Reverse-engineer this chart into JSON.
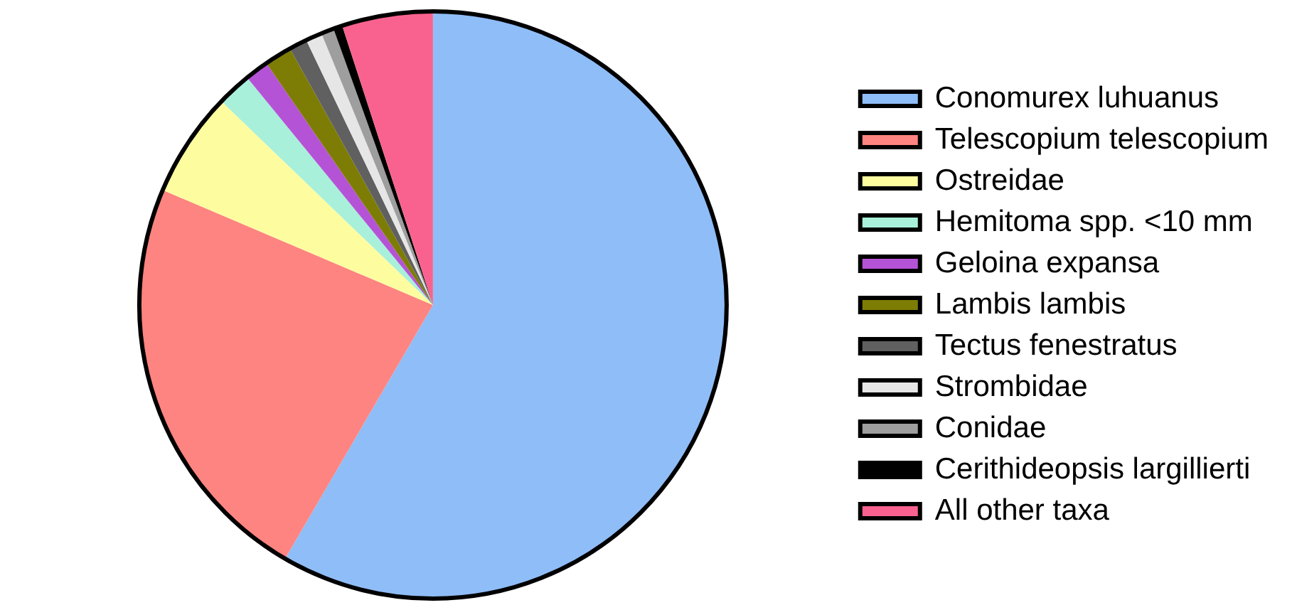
{
  "chart_data": {
    "type": "pie",
    "categories": [
      "Conomurex luhuanus",
      "Telescopium telescopium",
      "Ostreidae",
      "Hemitoma spp. <10 mm",
      "Geloina expansa",
      "Lambis lambis",
      "Tectus fenestratus",
      "Strombidae",
      "Conidae",
      "Cerithideopsis largillierti",
      "All other taxa"
    ],
    "values": [
      58.4,
      23.0,
      5.8,
      1.9,
      1.3,
      1.5,
      1.0,
      0.9,
      0.7,
      0.5,
      5.0
    ],
    "colors": [
      "#8fbdf7",
      "#fd8480",
      "#fdfda0",
      "#a8f0da",
      "#b553d6",
      "#7d7d05",
      "#606060",
      "#e6e6e6",
      "#9e9e9e",
      "#000000",
      "#f9628f"
    ],
    "legend": "right"
  }
}
